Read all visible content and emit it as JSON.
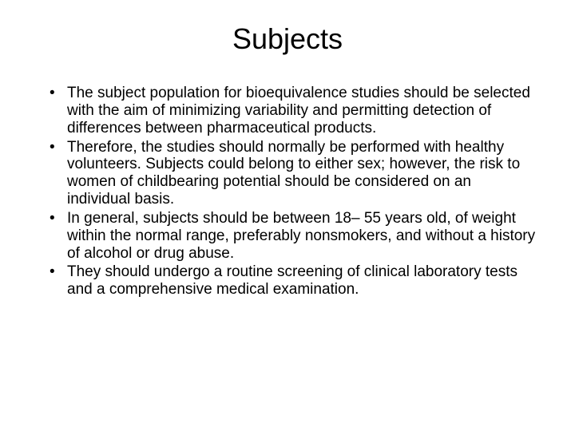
{
  "title": "Subjects",
  "bullets": [
    "The subject population for bioequivalence studies should be selected with the aim of minimizing variability and permitting detection of differences between pharmaceutical products.",
    "Therefore, the studies should normally be performed with healthy volunteers. Subjects could belong to either sex; however, the risk to women of childbearing potential should be considered on an individual basis.",
    "In general, subjects should be between 18– 55 years old, of weight within the normal range, preferably nonsmokers, and without a history of alcohol or drug abuse.",
    "They should undergo a routine screening of clinical laboratory tests and a comprehensive medical examination."
  ],
  "colors": {
    "background": "#ffffff",
    "text": "#000000"
  },
  "typography": {
    "title_fontsize": 36,
    "body_fontsize": 19,
    "font_family": "Arial"
  }
}
